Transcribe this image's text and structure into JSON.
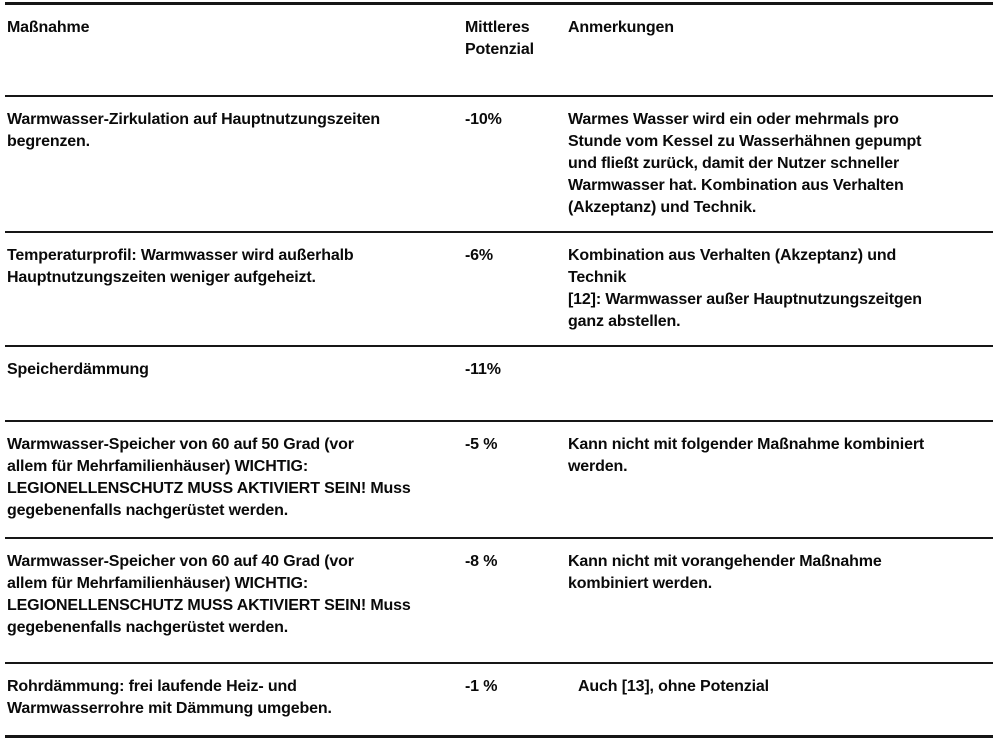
{
  "colors": {
    "text": "#0a0a0a",
    "rule": "#161616",
    "background": "#ffffff"
  },
  "table": {
    "header": {
      "measure": "Maßnahme",
      "potential": "Mittleres\nPotenzial",
      "notes": "Anmerkungen"
    },
    "rows": [
      {
        "measure": "Warmwasser-Zirkulation auf Hauptnutzungszeiten\nbegrenzen.",
        "potential": "-10%",
        "notes": "Warmes Wasser wird ein oder mehrmals pro\nStunde vom Kessel zu Wasserhähnen gepumpt\nund fließt zurück, damit der Nutzer schneller\nWarmwasser hat. Kombination aus Verhalten\n(Akzeptanz) und Technik."
      },
      {
        "measure": "Temperaturprofil: Warmwasser wird außerhalb\nHauptnutzungszeiten weniger aufgeheizt.",
        "potential": "-6%",
        "notes": "Kombination aus Verhalten (Akzeptanz) und\nTechnik\n[12]: Warmwasser außer Hauptnutzungszeitgen\nganz abstellen."
      },
      {
        "measure": "Speicherdämmung",
        "potential": "-11%",
        "notes": ""
      },
      {
        "measure": "Warmwasser-Speicher von 60 auf 50 Grad (vor\nallem für Mehrfamilienhäuser) WICHTIG:\nLEGIONELLENSCHUTZ MUSS AKTIVIERT SEIN! Muss\ngegebenenfalls nachgerüstet werden.",
        "potential": "-5 %",
        "notes": "Kann nicht mit folgender Maßnahme kombiniert\nwerden."
      },
      {
        "measure": "Warmwasser-Speicher von 60 auf 40 Grad (vor\nallem für Mehrfamilienhäuser) WICHTIG:\nLEGIONELLENSCHUTZ MUSS AKTIVIERT SEIN! Muss\ngegebenenfalls nachgerüstet werden.",
        "potential": "-8 %",
        "notes": "Kann nicht mit vorangehender Maßnahme\nkombiniert werden."
      },
      {
        "measure": "Rohrdämmung: frei laufende Heiz- und\nWarmwasserrohre mit Dämmung umgeben.",
        "potential": "-1 %",
        "notes": "Auch [13], ohne Potenzial"
      }
    ]
  }
}
